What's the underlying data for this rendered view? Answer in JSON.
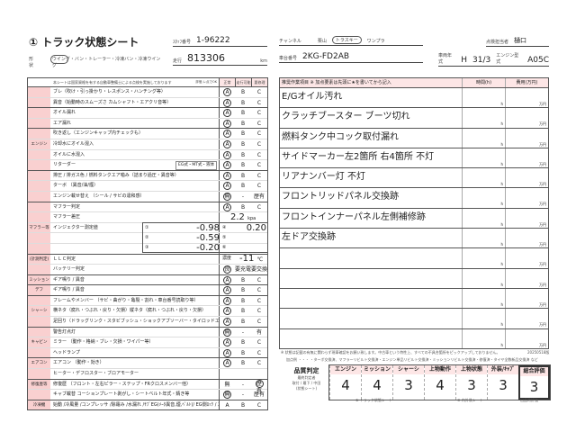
{
  "header": {
    "title": "① トラック状態シート",
    "auction_label": "ｽﾀｯﾌ番号",
    "auction_no": "1-96222",
    "channel_label": "チャンネル",
    "channels": [
      "栗山",
      "トラスキー",
      "ワンプラ"
    ],
    "selected_channel": "トラスキー",
    "inspector_label": "点検担当者",
    "inspector": "樋口",
    "shape_label": "形状",
    "shape_options": "ウイング・バン・トレーラー・冷凍バン・冷凍ウイング",
    "selected_shape": "ウイング",
    "mileage_label": "走行",
    "mileage": "813306",
    "mileage_unit": "km",
    "chassis_label": "車台番号",
    "chassis": "2KG-FD2AB",
    "year_label": "車両年式",
    "year_era": "H",
    "year": "31/3",
    "engine_label": "エンジン型式",
    "engine": "A05C"
  },
  "left_table": {
    "note": "本シートは国家資格を有する自動車整備士による点検を実施しております",
    "eval_label": "評価 レ点でOK",
    "col_headers": [
      "正常",
      "走行可能",
      "要修理"
    ],
    "rows": [
      {
        "cat": "",
        "item": "ブレ（吹け・引っ掛かり・レスポンス・ハンチング等）",
        "marks": [
          "A",
          "B",
          "C"
        ],
        "sel": 0,
        "g": 1
      },
      {
        "cat": "",
        "item": "異音（始動時のスムーズさ カムシャフト・エアクリ音等）",
        "marks": [
          "A",
          "B",
          "C"
        ],
        "sel": 0
      },
      {
        "cat": "",
        "item": "オイル漏れ",
        "marks": [
          "A",
          "B",
          "C"
        ],
        "sel": 0,
        "g": 1
      },
      {
        "cat": "",
        "item": "エア漏れ",
        "marks": [
          "A",
          "B",
          "C"
        ],
        "sel": 0
      },
      {
        "cat": "",
        "item": "吹き返し（エンジンキャップ内チェックも）",
        "marks": [
          "A",
          "B",
          "C"
        ],
        "sel": 0,
        "g": 1
      },
      {
        "cat": "エンジン",
        "item": "冷却水にオイル混入",
        "marks": [
          "A",
          "B",
          "C"
        ],
        "sel": 0
      },
      {
        "cat": "",
        "item": "オイルに水混入",
        "marks": [
          "A",
          "B",
          "C"
        ],
        "sel": 0
      },
      {
        "cat": "",
        "item": "リターダー",
        "option": "EG式・MT式・液体",
        "marks": [
          "A",
          "B",
          "C"
        ],
        "sel": 0
      },
      {
        "cat": "",
        "item": "排圧 / 排ガス色 / 燃料タンクエア噛み（詰まり過圧・異音等）",
        "marks": [
          "A",
          "B",
          "C"
        ],
        "sel": 0,
        "g": 1
      },
      {
        "cat": "",
        "item": "ターボ （異音/油/煙）",
        "marks": [
          "A",
          "B",
          "C"
        ],
        "sel": 0
      },
      {
        "cat": "",
        "item": "エンジン載せ替え （シール / サビの違和感）",
        "marks": [
          "無",
          "-",
          "歴有"
        ],
        "sel": 0
      },
      {
        "cat": "",
        "item": "マフラー判定",
        "marks": [
          "A",
          "B",
          "C"
        ],
        "sel": 0,
        "g": 1
      },
      {
        "cat": "",
        "item": "マフラー差圧",
        "marks": [
          "",
          "",
          ""
        ],
        "sel": -1
      },
      {
        "cat": "マフラー等",
        "item": "インジェクター測定値",
        "marks": [
          "",
          "",
          ""
        ],
        "sel": -1
      },
      {
        "cat": "",
        "item": "",
        "marks": [
          "",
          "",
          ""
        ],
        "sel": -1
      },
      {
        "cat": "",
        "item": "",
        "marks": [
          "",
          "",
          ""
        ],
        "sel": -1
      },
      {
        "cat": "(計測判定)",
        "item": "ＬＬＣ判定",
        "marks": [
          "",
          "",
          ""
        ],
        "sel": -1,
        "g": 1
      },
      {
        "cat": "",
        "item": "バッテリー判定",
        "marks": [
          "良",
          "要充電",
          "要交換"
        ],
        "sel": 0
      },
      {
        "cat": "ミッション",
        "item": "ギア鳴り / 異音",
        "marks": [
          "A",
          "B",
          "C"
        ],
        "sel": 0,
        "g": 1
      },
      {
        "cat": "デフ",
        "item": "ギア鳴り / 異音",
        "marks": [
          "A",
          "B",
          "C"
        ],
        "sel": 0,
        "g": 1
      },
      {
        "cat": "",
        "item": "フレームやメンバー （サビ・曲がり・亀裂・割れ・車台番号読取り等）",
        "marks": [
          "A",
          "B",
          "C"
        ],
        "sel": 0,
        "g": 1
      },
      {
        "cat": "シャーシ",
        "item": "横ネタ（腐れ・つぶれ・戻り・欠損）縦ネタ（腐れ・つぶれ・戻り・欠損）",
        "marks": [
          "A",
          "B",
          "C"
        ],
        "sel": 0
      },
      {
        "cat": "",
        "item": "足回り（ドラッグリンク・スタビブッシュ・ショックアブソーバー・タイロッドエンド）",
        "marks": [
          "A",
          "B",
          "C"
        ],
        "sel": 0
      },
      {
        "cat": "",
        "item": "警告灯点灯",
        "marks": [
          "無",
          "-",
          "有"
        ],
        "sel": 0,
        "g": 1
      },
      {
        "cat": "キャビン",
        "item": "ミラー （動作・格納・ブレ・欠損・ワイパー等）",
        "marks": [
          "A",
          "B",
          "C"
        ],
        "sel": 0
      },
      {
        "cat": "",
        "item": "ヘッドランプ",
        "marks": [
          "A",
          "B",
          "C"
        ],
        "sel": 0
      },
      {
        "cat": "エアコン",
        "item": "エアコン （動作・効き）",
        "marks": [
          "A",
          "B",
          "C"
        ],
        "sel": 0,
        "g": 1
      },
      {
        "cat": "",
        "item": "ヒーター・デフロスター・ブロアモーター",
        "marks": [
          "",
          "",
          ""
        ],
        "sel": -1
      },
      {
        "cat": "修復歴等",
        "item": "修復歴 （フロント・左右ピラー・ステップ・FRクロスメンバー他）",
        "marks": [
          "無",
          "-",
          "歴有"
        ],
        "sel": 2,
        "g": 1
      },
      {
        "cat": "",
        "item": "キャブ載替 コーションプレート剥がし・シートベルト年式・錆き等",
        "marks": [
          "無",
          "-",
          "歴有"
        ],
        "sel": 0
      },
      {
        "cat": "冷凍機",
        "item": "始動 /冷風量 /コンプレッサ /除霜み /水漏れ /ｻﾌﾞEG(ﾒｰﾀ異音,煙,ﾍﾞﾙﾄ)/ EG側ﾛｯｸ / ｽﾀﾝﾊﾞｲ",
        "marks": [
          "A",
          "B",
          "C"
        ],
        "sel": -1,
        "g": 1
      }
    ],
    "muffler_pressure": "2.2",
    "muffler_unit": "kpa",
    "injector": [
      {
        "n": "①",
        "v": "-0.98"
      },
      {
        "n": "②",
        "v": "-0.59"
      },
      {
        "n": "③",
        "v": "-0.20"
      },
      {
        "n": "④",
        "v": "0.20"
      },
      {
        "n": "⑤",
        "v": ""
      },
      {
        "n": "⑥",
        "v": ""
      }
    ],
    "llc_label": "濃度",
    "llc_value": "-11",
    "llc_unit": "℃"
  },
  "right_table": {
    "header": "推奨作業項目 ※ 加点要素は先頭に★を書いてから記入",
    "time_header": "時間(h)",
    "cost_header": "費用(万円)",
    "h_unit": "h",
    "cost_unit": "万円",
    "items": [
      "E/Gオイル汚れ",
      "クラッチブースター ブーツ切れ",
      "燃料タンク中コック取付漏れ",
      "サイドマーカー左2箇所 右4箇所 不灯",
      "リアナンバー灯 不灯",
      "フロントリッドパネル交換跡",
      "フロントインナーパネル左側補修跡",
      "左ドア交換跡",
      "",
      "",
      "",
      "",
      ""
    ]
  },
  "footnote1": "※ 状態は記載の有無に関わらず現車確認をお願い致します。中古車という特性上、すべての不具合箇所をピックアップしておりません。",
  "footnote2": "加点例 ・・・ ・ターボ交換済、マフラーリビルト交換済・エンジン単品リビルト交換済・ミッションリビルト交換済・修復済・タイヤ全数新品交換済 など",
  "date": "20250518版",
  "quality": {
    "label": "品質判定",
    "sub1": "最終判定者",
    "sub2": "取付 / 最下 / 中田",
    "sub3": "(状態シート)",
    "headers": [
      "エンジン",
      "ミッション",
      "シャーシ",
      "上物動作",
      "上物状態",
      "外装/ｷｬﾌﾞ",
      "総合評価"
    ],
    "values": [
      "4",
      "4",
      "3",
      "4",
      "3",
      "3",
      "3"
    ],
    "note1": "① トラック状態シート",
    "note2": "③ 内外装シート",
    "note3": "出品時評価"
  }
}
